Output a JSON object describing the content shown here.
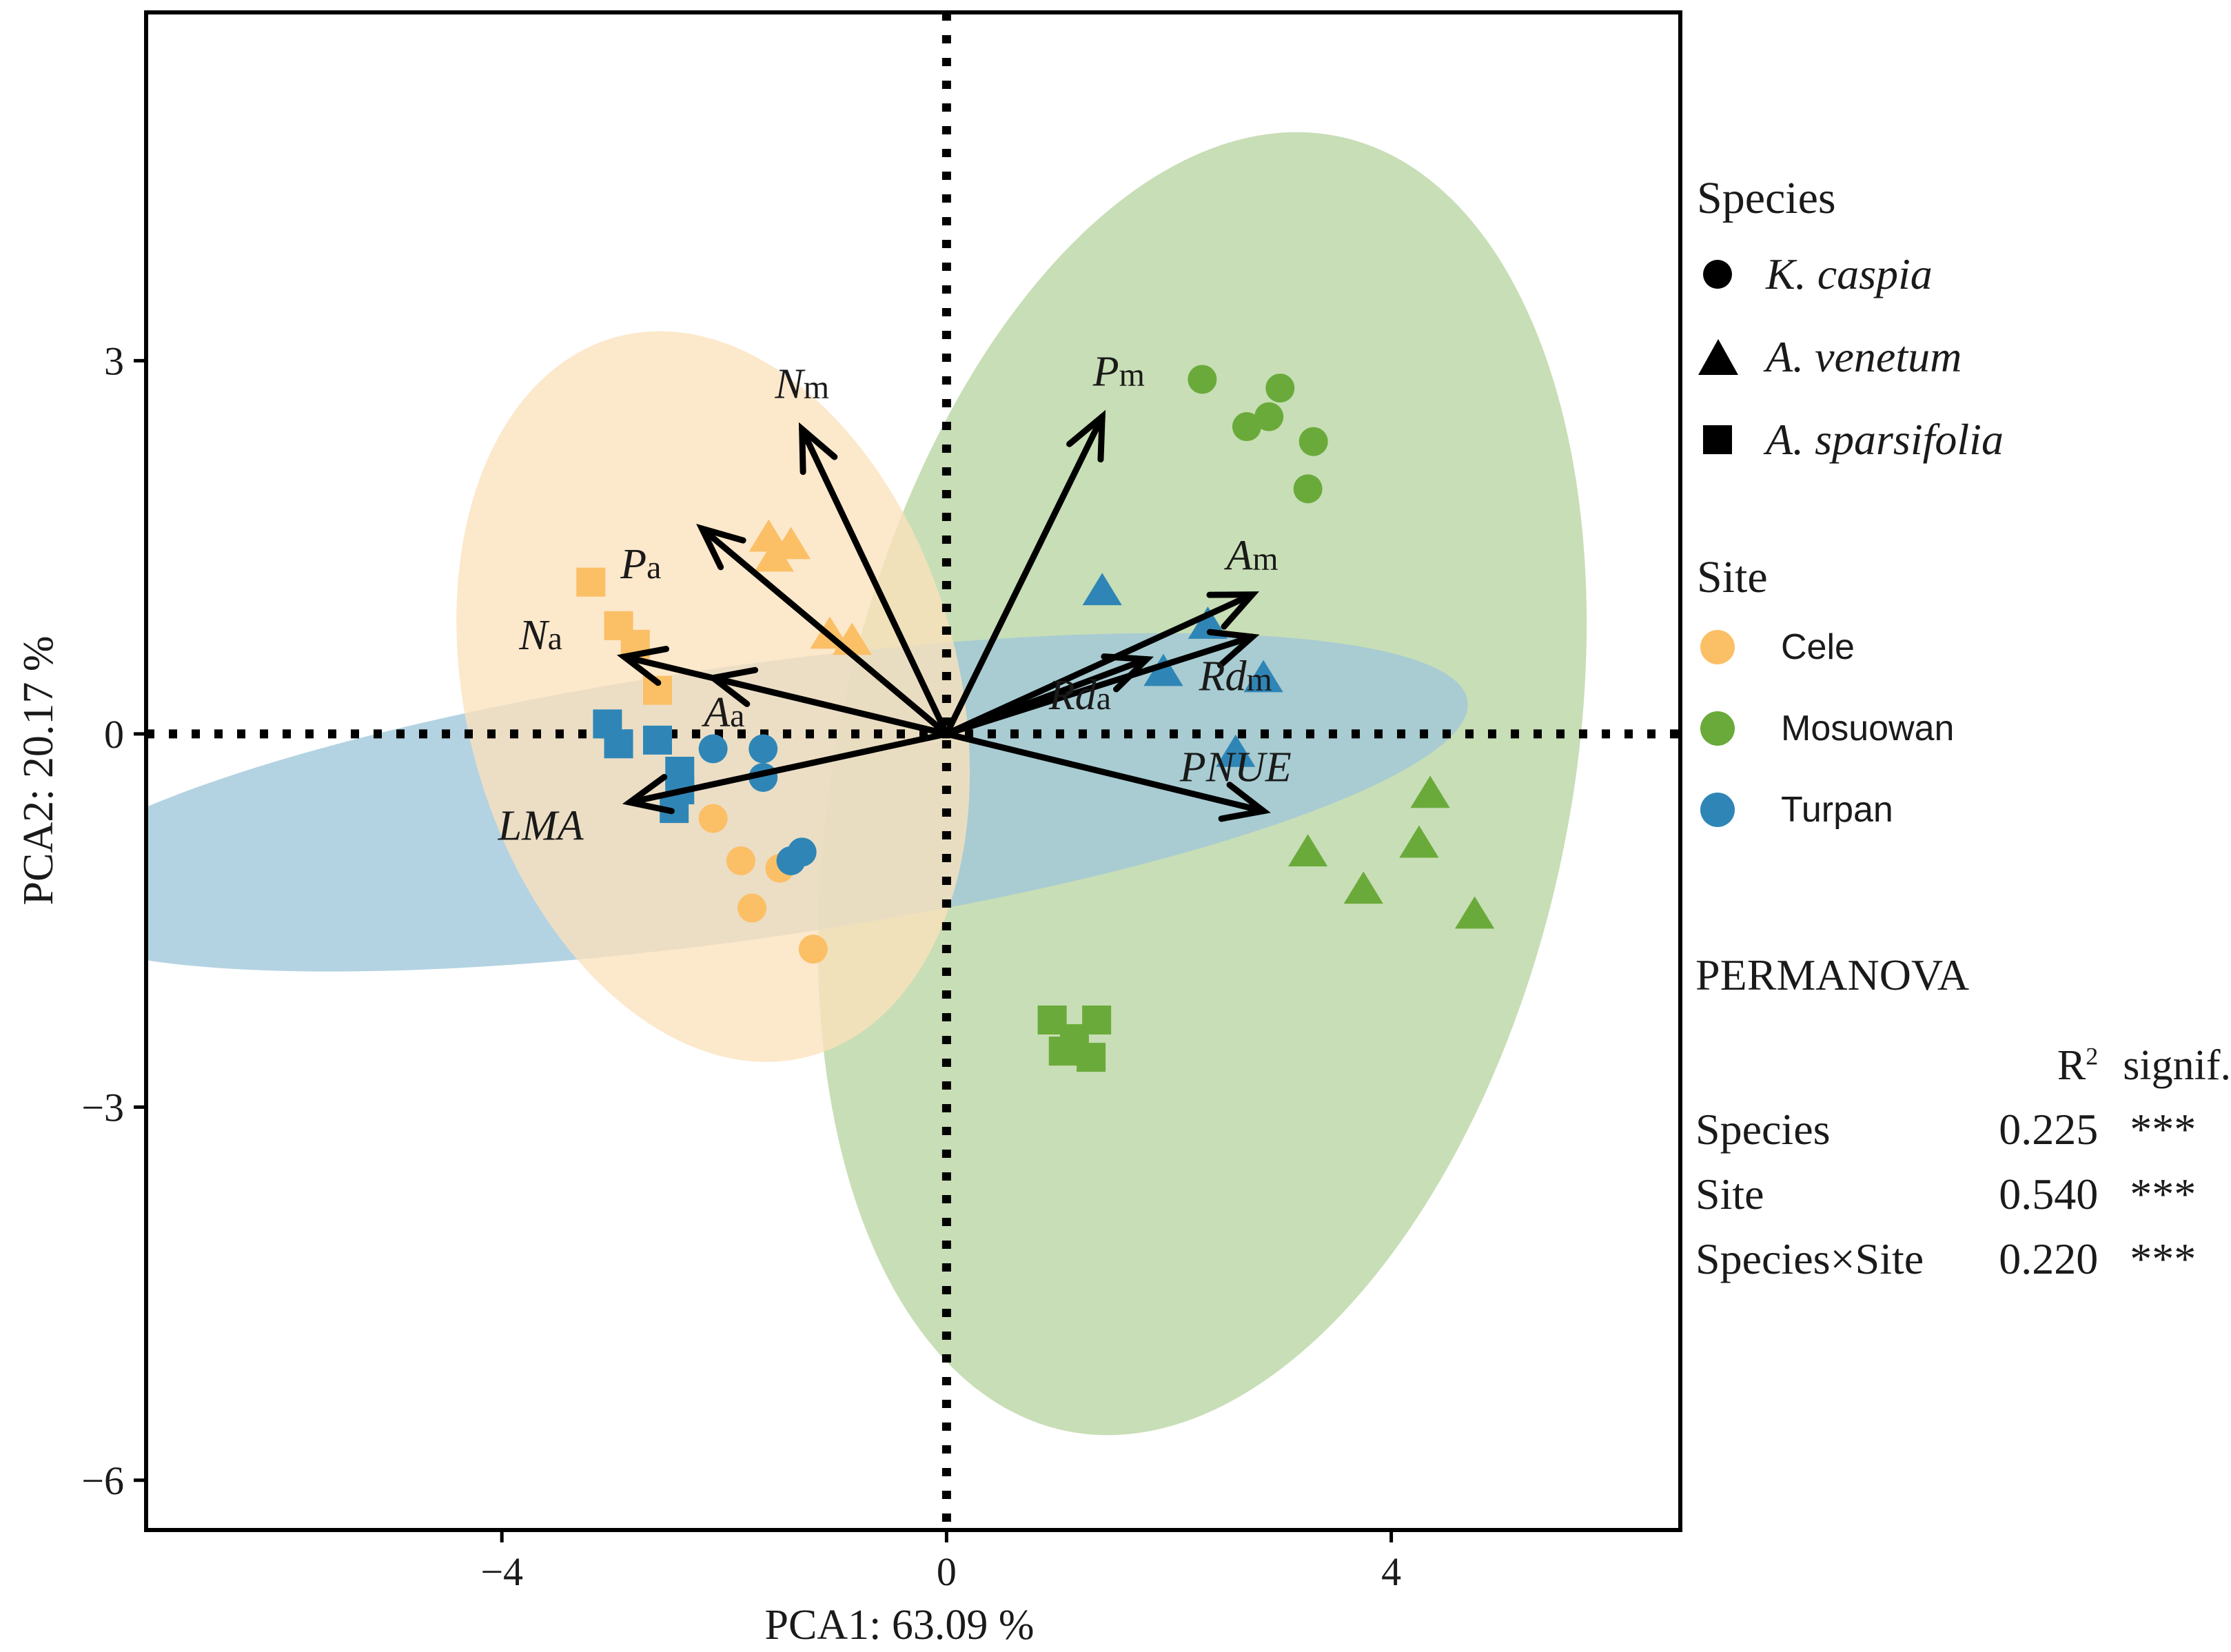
{
  "chart_data": {
    "type": "scatter",
    "title": "",
    "xlabel": "PCA1: 63.09 %",
    "ylabel": "PCA2: 20.17 %",
    "xlim": [
      -7.2,
      6.6
    ],
    "ylim": [
      -6.4,
      5.8
    ],
    "xticks": [
      {
        "value": -4,
        "label": "−4"
      },
      {
        "value": 0,
        "label": "0"
      },
      {
        "value": 4,
        "label": "4"
      }
    ],
    "yticks": [
      {
        "value": 3,
        "label": "3"
      },
      {
        "value": 0,
        "label": "0"
      },
      {
        "value": -3,
        "label": "−3"
      },
      {
        "value": -6,
        "label": "−6"
      }
    ],
    "site_colors": {
      "Cele": "#fbbf66",
      "Mosuowan": "#6aaa3a",
      "Turpan": "#2f86b6"
    },
    "ellipse_colors": {
      "Cele": "#fbe2bd",
      "Mosuowan": "#b9d5a1",
      "Turpan": "#9fc7da"
    },
    "ellipses": [
      {
        "site": "Mosuowan",
        "cx": 2.3,
        "cy": -0.4,
        "rx": 5.95,
        "ry": 2.95,
        "angle_deg": -78
      },
      {
        "site": "Turpan",
        "cx": -1.8,
        "cy": -0.55,
        "rx": 6.55,
        "ry": 1.1,
        "angle_deg": -8
      },
      {
        "site": "Cele",
        "cx": -2.1,
        "cy": 0.3,
        "rx": 3.35,
        "ry": 1.98,
        "angle_deg": -105
      }
    ],
    "points": [
      {
        "species": "K. caspia",
        "site": "Mosuowan",
        "x": 2.3,
        "y": 2.85
      },
      {
        "species": "K. caspia",
        "site": "Mosuowan",
        "x": 3.0,
        "y": 2.78
      },
      {
        "species": "K. caspia",
        "site": "Mosuowan",
        "x": 2.7,
        "y": 2.47
      },
      {
        "species": "K. caspia",
        "site": "Mosuowan",
        "x": 2.9,
        "y": 2.55
      },
      {
        "species": "K. caspia",
        "site": "Mosuowan",
        "x": 3.3,
        "y": 2.35
      },
      {
        "species": "K. caspia",
        "site": "Mosuowan",
        "x": 3.25,
        "y": 1.97
      },
      {
        "species": "A. venetum",
        "site": "Mosuowan",
        "x": 4.35,
        "y": -0.48
      },
      {
        "species": "A. venetum",
        "site": "Mosuowan",
        "x": 3.25,
        "y": -0.95
      },
      {
        "species": "A. venetum",
        "site": "Mosuowan",
        "x": 4.25,
        "y": -0.88
      },
      {
        "species": "A. venetum",
        "site": "Mosuowan",
        "x": 3.75,
        "y": -1.25
      },
      {
        "species": "A. venetum",
        "site": "Mosuowan",
        "x": 4.75,
        "y": -1.45
      },
      {
        "species": "A. sparsifolia",
        "site": "Mosuowan",
        "x": 0.95,
        "y": -2.3
      },
      {
        "species": "A. sparsifolia",
        "site": "Mosuowan",
        "x": 1.35,
        "y": -2.3
      },
      {
        "species": "A. sparsifolia",
        "site": "Mosuowan",
        "x": 1.05,
        "y": -2.55
      },
      {
        "species": "A. sparsifolia",
        "site": "Mosuowan",
        "x": 1.3,
        "y": -2.6
      },
      {
        "species": "A. sparsifolia",
        "site": "Mosuowan",
        "x": 1.15,
        "y": -2.45
      },
      {
        "species": "K. caspia",
        "site": "Cele",
        "x": -2.1,
        "y": -0.68
      },
      {
        "species": "K. caspia",
        "site": "Cele",
        "x": -1.85,
        "y": -1.02
      },
      {
        "species": "K. caspia",
        "site": "Cele",
        "x": -1.5,
        "y": -1.08
      },
      {
        "species": "K. caspia",
        "site": "Cele",
        "x": -1.75,
        "y": -1.4
      },
      {
        "species": "K. caspia",
        "site": "Cele",
        "x": -1.2,
        "y": -1.73
      },
      {
        "species": "A. venetum",
        "site": "Cele",
        "x": -1.6,
        "y": 1.58
      },
      {
        "species": "A. venetum",
        "site": "Cele",
        "x": -1.4,
        "y": 1.52
      },
      {
        "species": "A. venetum",
        "site": "Cele",
        "x": -1.55,
        "y": 1.42
      },
      {
        "species": "A. venetum",
        "site": "Cele",
        "x": -1.05,
        "y": 0.8
      },
      {
        "species": "A. venetum",
        "site": "Cele",
        "x": -0.85,
        "y": 0.75
      },
      {
        "species": "A. sparsifolia",
        "site": "Cele",
        "x": -3.2,
        "y": 1.22
      },
      {
        "species": "A. sparsifolia",
        "site": "Cele",
        "x": -2.95,
        "y": 0.87
      },
      {
        "species": "A. sparsifolia",
        "site": "Cele",
        "x": -2.8,
        "y": 0.72
      },
      {
        "species": "A. sparsifolia",
        "site": "Cele",
        "x": -2.6,
        "y": 0.35
      },
      {
        "species": "K. caspia",
        "site": "Turpan",
        "x": -2.1,
        "y": -0.12
      },
      {
        "species": "K. caspia",
        "site": "Turpan",
        "x": -1.65,
        "y": -0.12
      },
      {
        "species": "K. caspia",
        "site": "Turpan",
        "x": -1.65,
        "y": -0.35
      },
      {
        "species": "K. caspia",
        "site": "Turpan",
        "x": -1.3,
        "y": -0.95
      },
      {
        "species": "K. caspia",
        "site": "Turpan",
        "x": -1.4,
        "y": -1.02
      },
      {
        "species": "A. venetum",
        "site": "Turpan",
        "x": 1.4,
        "y": 1.15
      },
      {
        "species": "A. venetum",
        "site": "Turpan",
        "x": 2.35,
        "y": 0.88
      },
      {
        "species": "A. venetum",
        "site": "Turpan",
        "x": 1.95,
        "y": 0.5
      },
      {
        "species": "A. venetum",
        "site": "Turpan",
        "x": 2.85,
        "y": 0.45
      },
      {
        "species": "A. venetum",
        "site": "Turpan",
        "x": 2.6,
        "y": -0.15
      },
      {
        "species": "A. sparsifolia",
        "site": "Turpan",
        "x": -3.05,
        "y": 0.08
      },
      {
        "species": "A. sparsifolia",
        "site": "Turpan",
        "x": -2.95,
        "y": -0.08
      },
      {
        "species": "A. sparsifolia",
        "site": "Turpan",
        "x": -2.6,
        "y": -0.05
      },
      {
        "species": "A. sparsifolia",
        "site": "Turpan",
        "x": -2.4,
        "y": -0.3
      },
      {
        "species": "A. sparsifolia",
        "site": "Turpan",
        "x": -2.45,
        "y": -0.6
      },
      {
        "species": "A. sparsifolia",
        "site": "Turpan",
        "x": -2.4,
        "y": -0.45
      }
    ],
    "loadings": [
      {
        "name": "Nm",
        "main": "N",
        "sub": "m",
        "x": -1.3,
        "y": 2.45,
        "lx": -1.3,
        "ly": 2.7
      },
      {
        "name": "Pm",
        "main": "P",
        "sub": "m",
        "x": 1.4,
        "y": 2.55,
        "lx": 1.55,
        "ly": 2.8
      },
      {
        "name": "Pa",
        "main": "P",
        "sub": "a",
        "x": -2.2,
        "y": 1.65,
        "lx": -2.75,
        "ly": 1.25
      },
      {
        "name": "Na",
        "main": "N",
        "sub": "a",
        "x": -2.9,
        "y": 0.62,
        "lx": -3.65,
        "ly": 0.68
      },
      {
        "name": "Aa",
        "main": "A",
        "sub": "a",
        "x": -2.1,
        "y": 0.45,
        "lx": -2.0,
        "ly": 0.06
      },
      {
        "name": "LMA",
        "main": "LMA",
        "sub": "",
        "x": -2.85,
        "y": -0.55,
        "lx": -3.65,
        "ly": -0.85
      },
      {
        "name": "Am",
        "main": "A",
        "sub": "m",
        "x": 2.75,
        "y": 1.12,
        "lx": 2.75,
        "ly": 1.32
      },
      {
        "name": "Rdm",
        "main": "Rd",
        "sub": "m",
        "x": 2.75,
        "y": 0.78,
        "lx": 2.6,
        "ly": 0.35
      },
      {
        "name": "Rda",
        "main": "Rd",
        "sub": "a",
        "x": 1.8,
        "y": 0.6,
        "lx": 1.2,
        "ly": 0.2
      },
      {
        "name": "PNUE",
        "main": "PNUE",
        "sub": "",
        "x": 2.85,
        "y": -0.62,
        "lx": 2.6,
        "ly": -0.38
      }
    ]
  },
  "legend": {
    "species_title": "Species",
    "species": [
      {
        "label": "K. caspia",
        "shape": "circle"
      },
      {
        "label": "A. venetum",
        "shape": "triangle"
      },
      {
        "label": "A. sparsifolia",
        "shape": "square"
      }
    ],
    "site_title": "Site",
    "sites": [
      {
        "label": "Cele",
        "color": "#fbbf66"
      },
      {
        "label": "Mosuowan",
        "color": "#6aaa3a"
      },
      {
        "label": "Turpan",
        "color": "#2f86b6"
      }
    ]
  },
  "permanova": {
    "title": "PERMANOVA",
    "col_r2": "R",
    "col_r2_sup": "2",
    "col_signif": "signif.",
    "rows": [
      {
        "term": "Species",
        "r2": "0.225",
        "signif": "***"
      },
      {
        "term": "Site",
        "r2": "0.540",
        "signif": "***"
      },
      {
        "term": "Species×Site",
        "r2": "0.220",
        "signif": "***"
      }
    ]
  }
}
